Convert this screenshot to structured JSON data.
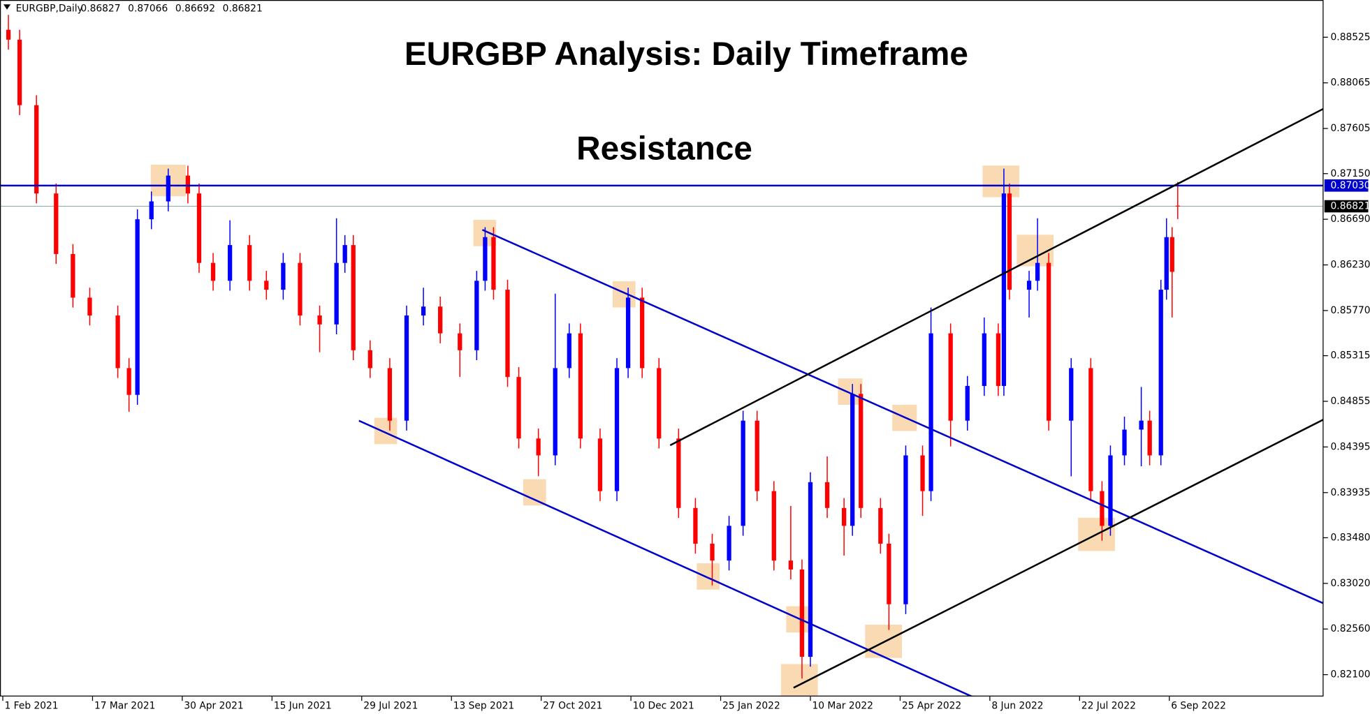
{
  "chart_data": {
    "type": "candlestick",
    "symbol": "EURGBP,Daily",
    "title": "EURGBP Analysis: Daily Timeframe",
    "annotation": "Resistance",
    "up_color": "#0000ff",
    "down_color": "#ff0000",
    "x": [
      2,
      6,
      12,
      19,
      25,
      31,
      41,
      45,
      48,
      53,
      59,
      66,
      70,
      75,
      81,
      88,
      94,
      100,
      106,
      113,
      119,
      122,
      125,
      131,
      138,
      144,
      150,
      156,
      163,
      169,
      172,
      175,
      180,
      184,
      191,
      197,
      202,
      206,
      213,
      219,
      223,
      228,
      234,
      241,
      247,
      253,
      259,
      264,
      269,
      275,
      281,
      285,
      288,
      294,
      300,
      303,
      306,
      313,
      316,
      322,
      328,
      331,
      338,
      344,
      350,
      355,
      357,
      359,
      366,
      369,
      373,
      381,
      388,
      392,
      395,
      400,
      406,
      409,
      413,
      415,
      417,
      419
    ],
    "open": [
      0.886,
      0.885,
      0.8784,
      0.8695,
      0.8634,
      0.859,
      0.8572,
      0.8519,
      0.8492,
      0.8669,
      0.8687,
      0.8713,
      0.8695,
      0.8625,
      0.8607,
      0.8643,
      0.8607,
      0.8598,
      0.8625,
      0.8572,
      0.8563,
      0.8625,
      0.8643,
      0.8537,
      0.8519,
      0.8466,
      0.8572,
      0.8581,
      0.8554,
      0.8537,
      0.8607,
      0.8651,
      0.8598,
      0.851,
      0.8448,
      0.8431,
      0.8519,
      0.8554,
      0.8448,
      0.8395,
      0.8519,
      0.859,
      0.8519,
      0.8448,
      0.8378,
      0.8342,
      0.8325,
      0.836,
      0.8466,
      0.8395,
      0.8325,
      0.8316,
      0.8228,
      0.8404,
      0.8378,
      0.836,
      0.8493,
      0.8378,
      0.8342,
      0.8281,
      0.8431,
      0.8395,
      0.8554,
      0.8466,
      0.8501,
      0.8554,
      0.8501,
      0.8695,
      0.8598,
      0.8607,
      0.8625,
      0.8466,
      0.8519,
      0.8395,
      0.836,
      0.8431,
      0.8457,
      0.8466,
      0.8431,
      0.8598,
      0.8651,
      0.86827
    ],
    "high": [
      0.8875,
      0.886,
      0.8794,
      0.8705,
      0.8644,
      0.86,
      0.8582,
      0.8529,
      0.8679,
      0.8697,
      0.872,
      0.8723,
      0.8705,
      0.8635,
      0.8668,
      0.8653,
      0.8617,
      0.8635,
      0.8635,
      0.8582,
      0.867,
      0.8653,
      0.8653,
      0.8547,
      0.8529,
      0.8582,
      0.86,
      0.8591,
      0.8564,
      0.8617,
      0.8661,
      0.8661,
      0.8608,
      0.852,
      0.8458,
      0.8594,
      0.8564,
      0.8564,
      0.8458,
      0.8529,
      0.86,
      0.86,
      0.8529,
      0.8458,
      0.8388,
      0.8352,
      0.837,
      0.8476,
      0.8476,
      0.8405,
      0.838,
      0.8326,
      0.8414,
      0.843,
      0.8388,
      0.8503,
      0.8503,
      0.8388,
      0.8352,
      0.8441,
      0.8441,
      0.858,
      0.8564,
      0.8511,
      0.857,
      0.8564,
      0.872,
      0.8705,
      0.8617,
      0.867,
      0.8635,
      0.8529,
      0.8529,
      0.8405,
      0.8441,
      0.847,
      0.85,
      0.8476,
      0.8608,
      0.867,
      0.8661,
      0.87066
    ],
    "low": [
      0.884,
      0.8774,
      0.8685,
      0.8624,
      0.858,
      0.8562,
      0.8509,
      0.8475,
      0.8482,
      0.8659,
      0.8677,
      0.8685,
      0.8615,
      0.8597,
      0.8597,
      0.8597,
      0.8588,
      0.8588,
      0.8562,
      0.8535,
      0.8553,
      0.8615,
      0.8527,
      0.8509,
      0.8456,
      0.8456,
      0.8562,
      0.8544,
      0.851,
      0.8527,
      0.8597,
      0.8588,
      0.85,
      0.8438,
      0.841,
      0.8421,
      0.8509,
      0.8438,
      0.8385,
      0.8385,
      0.8509,
      0.8509,
      0.8438,
      0.8368,
      0.8332,
      0.83,
      0.8315,
      0.835,
      0.8385,
      0.8315,
      0.8306,
      0.8206,
      0.8218,
      0.8368,
      0.833,
      0.835,
      0.8368,
      0.8332,
      0.8255,
      0.8271,
      0.837,
      0.8385,
      0.844,
      0.8456,
      0.8491,
      0.8491,
      0.8491,
      0.8588,
      0.857,
      0.8597,
      0.8456,
      0.841,
      0.8385,
      0.8345,
      0.835,
      0.8421,
      0.842,
      0.8421,
      0.8421,
      0.8588,
      0.857,
      0.86692
    ],
    "close": [
      0.885,
      0.8784,
      0.8695,
      0.8634,
      0.859,
      0.8572,
      0.8519,
      0.8492,
      0.8669,
      0.8687,
      0.8713,
      0.8695,
      0.8625,
      0.8607,
      0.8643,
      0.8607,
      0.8598,
      0.8625,
      0.8572,
      0.8563,
      0.8625,
      0.8643,
      0.8537,
      0.8519,
      0.8466,
      0.8572,
      0.8581,
      0.8554,
      0.8537,
      0.8607,
      0.8651,
      0.8598,
      0.851,
      0.8448,
      0.8431,
      0.8519,
      0.8554,
      0.8448,
      0.8395,
      0.8519,
      0.859,
      0.8519,
      0.8448,
      0.8378,
      0.8342,
      0.8325,
      0.836,
      0.8466,
      0.8395,
      0.8325,
      0.8316,
      0.8228,
      0.8404,
      0.8378,
      0.836,
      0.8493,
      0.8378,
      0.8342,
      0.8281,
      0.8431,
      0.8395,
      0.8554,
      0.8466,
      0.8501,
      0.8554,
      0.8501,
      0.8695,
      0.8598,
      0.8607,
      0.8625,
      0.8466,
      0.8519,
      0.8395,
      0.836,
      0.8431,
      0.8457,
      0.8466,
      0.8431,
      0.8598,
      0.8651,
      0.8616,
      0.86821
    ],
    "xlim": [
      -1,
      471
    ],
    "ylim": [
      0.8188,
      0.889
    ],
    "xticks": [
      {
        "value": 0,
        "label": "1 Feb 2021"
      },
      {
        "value": 32,
        "label": "17 Mar 2021"
      },
      {
        "value": 64,
        "label": "30 Apr 2021"
      },
      {
        "value": 96,
        "label": "15 Jun 2021"
      },
      {
        "value": 128,
        "label": "29 Jul 2021"
      },
      {
        "value": 160,
        "label": "13 Sep 2021"
      },
      {
        "value": 192,
        "label": "27 Oct 2021"
      },
      {
        "value": 224,
        "label": "10 Dec 2021"
      },
      {
        "value": 256,
        "label": "25 Jan 2022"
      },
      {
        "value": 288,
        "label": "10 Mar 2022"
      },
      {
        "value": 320,
        "label": "25 Apr 2022"
      },
      {
        "value": 352,
        "label": "8 Jun 2022"
      },
      {
        "value": 384,
        "label": "22 Jul 2022"
      },
      {
        "value": 416,
        "label": "6 Sep 2022"
      }
    ],
    "yticks": [
      0.88525,
      0.88065,
      0.87605,
      {
        "value": 0.8715,
        "label": "0.87150"
      },
      {
        "value": 0.8669,
        "label": "0.86690"
      },
      {
        "value": 0.8623,
        "label": "0.86230"
      },
      {
        "value": 0.8577,
        "label": "0.85770"
      },
      0.85315,
      0.84855,
      0.84395,
      0.83935,
      {
        "value": 0.8348,
        "label": "0.83480"
      },
      {
        "value": 0.8302,
        "label": "0.83020"
      },
      {
        "value": 0.8256,
        "label": "0.82560"
      },
      {
        "value": 0.821,
        "label": "0.82100"
      }
    ],
    "resistance": {
      "value": 0.8703,
      "label": "0.87030"
    },
    "resistance_color": "#0000cc",
    "trend_lines": [
      {
        "color": "#0000cc",
        "x": [
          127,
          347
        ],
        "y": [
          0.8466,
          0.81862
        ]
      },
      {
        "color": "#0000cc",
        "x": [
          171,
          472
        ],
        "y": [
          0.86584,
          0.82806
        ]
      },
      {
        "color": "#000000",
        "x": [
          238,
          472
        ],
        "y": [
          0.84412,
          0.87819
        ]
      },
      {
        "color": "#000000",
        "x": [
          282,
          472
        ],
        "y": [
          0.81968,
          0.84686
        ]
      }
    ]
  }
}
